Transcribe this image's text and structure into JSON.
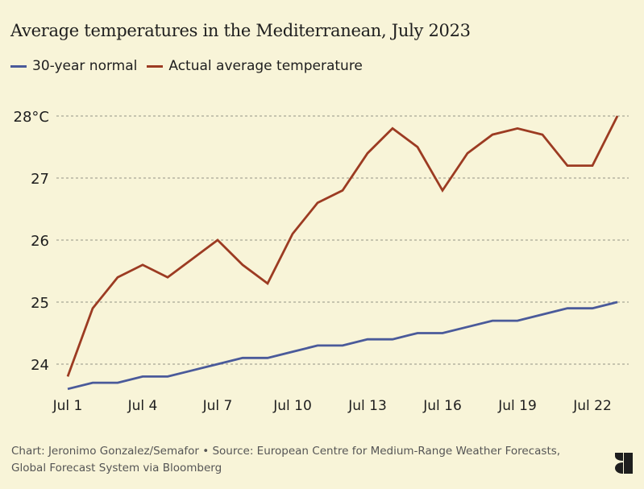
{
  "chart_data": {
    "type": "line",
    "title": "Average temperatures in the Mediterranean, July 2023",
    "xlabel": "",
    "ylabel": "",
    "x": [
      "Jul 1",
      "Jul 2",
      "Jul 3",
      "Jul 4",
      "Jul 5",
      "Jul 6",
      "Jul 7",
      "Jul 8",
      "Jul 9",
      "Jul 10",
      "Jul 11",
      "Jul 12",
      "Jul 13",
      "Jul 14",
      "Jul 15",
      "Jul 16",
      "Jul 17",
      "Jul 18",
      "Jul 19",
      "Jul 20",
      "Jul 21",
      "Jul 22",
      "Jul 23"
    ],
    "x_tick_labels": [
      "Jul 1",
      "Jul 4",
      "Jul 7",
      "Jul 10",
      "Jul 13",
      "Jul 16",
      "Jul 19",
      "Jul 22"
    ],
    "y_ticks": [
      24,
      25,
      26,
      27,
      28
    ],
    "y_tick_labels": [
      "24",
      "25",
      "26",
      "27",
      "28°C"
    ],
    "ylim": [
      23.6,
      28.0
    ],
    "grid": "horizontal dashed",
    "legend_position": "top-left",
    "series": [
      {
        "name": "30-year normal",
        "color": "#4A5A9A",
        "values": [
          23.6,
          23.7,
          23.7,
          23.8,
          23.8,
          23.9,
          24.0,
          24.1,
          24.1,
          24.2,
          24.3,
          24.3,
          24.4,
          24.4,
          24.5,
          24.5,
          24.6,
          24.7,
          24.7,
          24.8,
          24.9,
          24.9,
          25.0
        ]
      },
      {
        "name": "Actual average temperature",
        "color": "#9C3B22",
        "values": [
          23.8,
          24.9,
          25.4,
          25.6,
          25.4,
          25.7,
          26.0,
          25.6,
          25.3,
          26.1,
          26.6,
          26.8,
          27.4,
          27.8,
          27.5,
          26.8,
          27.4,
          27.7,
          27.8,
          27.7,
          27.2,
          27.2,
          28.0
        ]
      }
    ]
  },
  "footer": {
    "line1": "Chart: Jeronimo Gonzalez/Semafor • Source: European Centre for Medium-Range Weather Forecasts,",
    "line2": "Global Forecast System via Bloomberg"
  },
  "logo": {
    "icon": "semafor-logo-icon"
  }
}
